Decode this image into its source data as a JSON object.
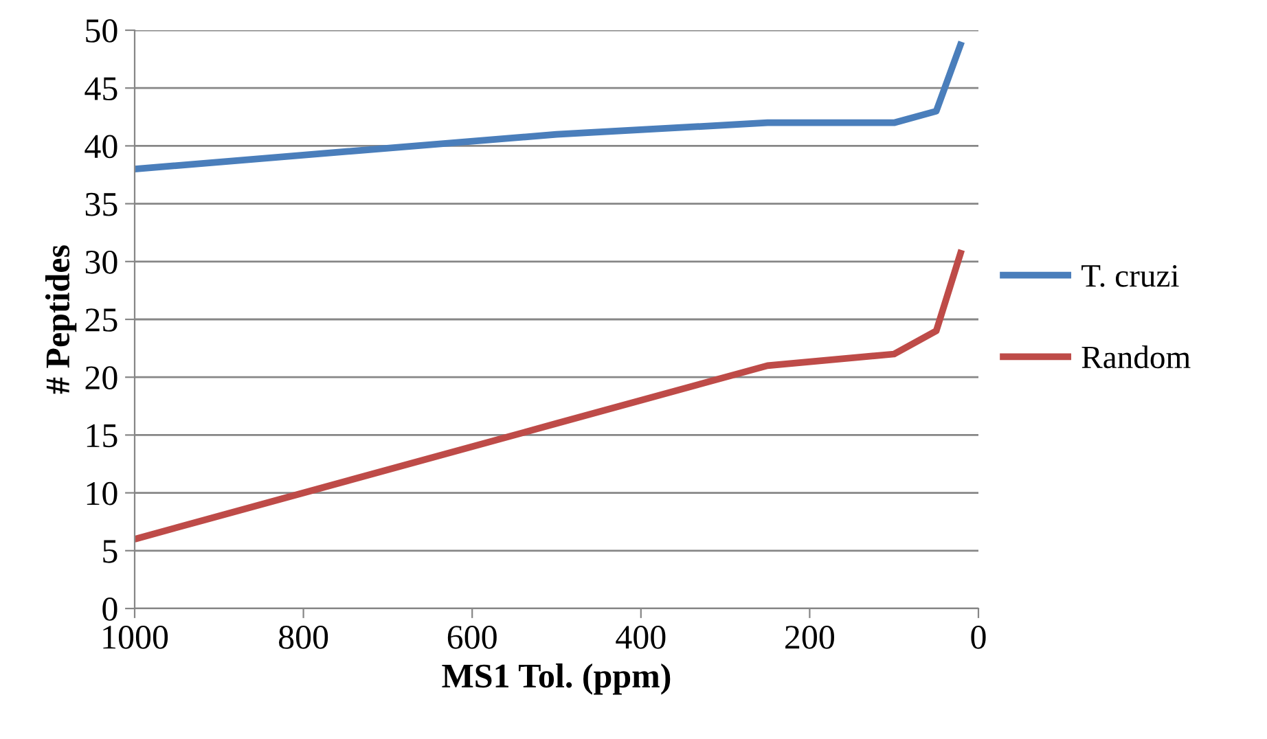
{
  "chart_data": {
    "type": "line",
    "xlabel": "MS1 Tol. (ppm)",
    "ylabel": "# Peptides",
    "x": [
      1000,
      500,
      250,
      100,
      50,
      20
    ],
    "series": [
      {
        "name": "T. cruzi",
        "color": "#4a7ebb",
        "values": [
          38,
          41,
          42,
          42,
          43,
          49
        ]
      },
      {
        "name": "Random",
        "color": "#be4b48",
        "values": [
          6,
          16,
          21,
          22,
          24,
          31
        ]
      }
    ],
    "xlim": [
      1000,
      0
    ],
    "xticks": [
      1000,
      800,
      600,
      400,
      200,
      0
    ],
    "ylim": [
      0,
      50
    ],
    "yticks": [
      0,
      5,
      10,
      15,
      20,
      25,
      30,
      35,
      40,
      45,
      50
    ],
    "grid": "y",
    "legend": "right",
    "marker": "none",
    "line_style": "solid"
  }
}
